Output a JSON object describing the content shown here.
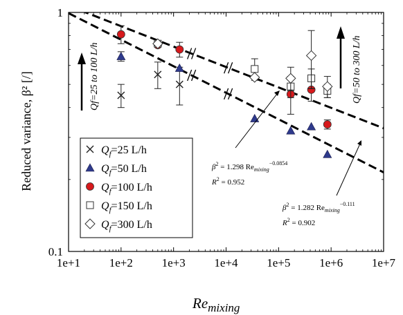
{
  "chart_data": {
    "type": "scatter",
    "xlabel": "Re",
    "xlabel_sub": "mixing",
    "ylabel": "Reduced variance, β² [/]",
    "x_scale": "log",
    "y_scale": "log",
    "xlim": [
      10,
      10000000
    ],
    "ylim": [
      0.1,
      1
    ],
    "x_ticks": [
      {
        "value": 10,
        "label": "1e+1"
      },
      {
        "value": 100,
        "label": "1e+2"
      },
      {
        "value": 1000,
        "label": "1e+3"
      },
      {
        "value": 10000,
        "label": "1e+4"
      },
      {
        "value": 100000,
        "label": "1e+5"
      },
      {
        "value": 1000000,
        "label": "1e+6"
      },
      {
        "value": 10000000,
        "label": "1e+7"
      }
    ],
    "y_ticks": [
      {
        "value": 1,
        "label": "1"
      },
      {
        "value": 0.1,
        "label": "0.1"
      }
    ],
    "grid": false,
    "legend_position": "bottom-left",
    "series": [
      {
        "name": "Qf=25 L/h",
        "legend_prefix": "Q",
        "legend_sub": "f",
        "legend_suffix": "=25 L/h",
        "marker": "x",
        "color": "#333333",
        "points": [
          {
            "x": 100,
            "y": 0.45,
            "err": 0.05
          },
          {
            "x": 500,
            "y": 0.55,
            "err": 0.07
          },
          {
            "x": 1300,
            "y": 0.5,
            "err": 0.09
          }
        ]
      },
      {
        "name": "Qf=50 L/h",
        "legend_prefix": "Q",
        "legend_sub": "f",
        "legend_suffix": "=50 L/h",
        "marker": "triangle",
        "color": "#2e3a8c",
        "points": [
          {
            "x": 100,
            "y": 0.655,
            "err": 0.03
          },
          {
            "x": 1300,
            "y": 0.585,
            "err": 0.0
          },
          {
            "x": 35000,
            "y": 0.36,
            "err": 0.0
          },
          {
            "x": 170000,
            "y": 0.32,
            "err": 0.0
          },
          {
            "x": 420000,
            "y": 0.333,
            "err": 0.0
          },
          {
            "x": 850000,
            "y": 0.255,
            "err": 0.0
          }
        ]
      },
      {
        "name": "Qf=100 L/h",
        "legend_prefix": "Q",
        "legend_sub": "f",
        "legend_suffix": "=100 L/h",
        "marker": "circle",
        "color": "#d7191c",
        "points": [
          {
            "x": 100,
            "y": 0.81,
            "err": 0.07
          },
          {
            "x": 500,
            "y": 0.73,
            "err": 0.0
          },
          {
            "x": 1300,
            "y": 0.7,
            "err": 0.05
          },
          {
            "x": 170000,
            "y": 0.455,
            "err": 0.08
          },
          {
            "x": 420000,
            "y": 0.475,
            "err": 0.05
          },
          {
            "x": 850000,
            "y": 0.34,
            "err": 0.015
          }
        ]
      },
      {
        "name": "Qf=150 L/h",
        "legend_prefix": "Q",
        "legend_sub": "f",
        "legend_suffix": "=150 L/h",
        "marker": "square",
        "color": "#333333",
        "points": [
          {
            "x": 500,
            "y": 0.74,
            "err": 0.0
          },
          {
            "x": 35000,
            "y": 0.58,
            "err": 0.06
          },
          {
            "x": 170000,
            "y": 0.49,
            "err": 0.05
          },
          {
            "x": 420000,
            "y": 0.53,
            "err": 0.05
          },
          {
            "x": 850000,
            "y": 0.47,
            "err": 0.03
          }
        ]
      },
      {
        "name": "Qf=300 L/h",
        "legend_prefix": "Q",
        "legend_sub": "f",
        "legend_suffix": "=300 L/h",
        "marker": "diamond",
        "color": "#333333",
        "points": [
          {
            "x": 500,
            "y": 0.74,
            "err": 0.0
          },
          {
            "x": 35000,
            "y": 0.535,
            "err": 0.0
          },
          {
            "x": 170000,
            "y": 0.53,
            "err": 0.06
          },
          {
            "x": 420000,
            "y": 0.66,
            "err": 0.18
          },
          {
            "x": 850000,
            "y": 0.49,
            "err": 0.05
          }
        ]
      }
    ],
    "fit_lines": [
      {
        "a": 1.298,
        "b": -0.0854,
        "x_from": 17,
        "x_to": 10000000,
        "label": "β² = 1.298 Re_mixing^−0.0854",
        "r2_label": "R² = 0.952"
      },
      {
        "a": 1.282,
        "b": -0.111,
        "x_from": 10,
        "x_to": 10000000,
        "label": "β² = 1.282 Re_mixing^−0.111",
        "r2_label": "R² = 0.902"
      }
    ],
    "axis_breaks_x": [
      2200,
      11000
    ],
    "annotations": {
      "left_arrow_text": "Qf=25 to 100 L/h",
      "right_arrow_text": "Qf=50 to 300 L/h",
      "eq1": {
        "lhs": "β",
        "sup_lhs": "2",
        "mid": " = 1.298 Re",
        "sub": "mixing",
        "sup": "−0.0854",
        "r2": "R",
        "r2_sup": "2",
        "r2_val": " = 0.952"
      },
      "eq2": {
        "lhs": "β",
        "sup_lhs": "2",
        "mid": " = 1.282 Re",
        "sub": "mixing",
        "sup": "−0.111",
        "r2": "R",
        "r2_sup": "2",
        "r2_val": " = 0.902"
      }
    }
  }
}
